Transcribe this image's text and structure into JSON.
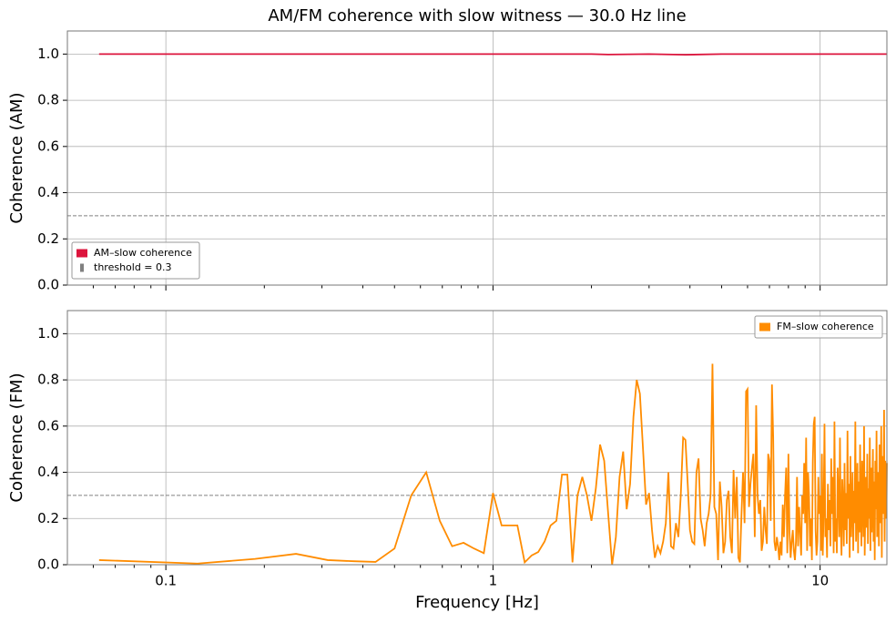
{
  "chart_data": [
    {
      "type": "line",
      "title": "AM/FM coherence with slow witness — 30.0 Hz line",
      "ylabel": "Coherence (AM)",
      "xscale": "log",
      "grid": true,
      "legend": "lower left",
      "xlim": [
        0.05,
        16
      ],
      "ylim": [
        0,
        1.1
      ],
      "yticks": [
        {
          "value": 0,
          "label": "0.0"
        },
        0.2,
        0.4,
        0.6,
        0.8,
        {
          "value": 1,
          "label": "1.0"
        }
      ],
      "threshold": {
        "value": 0.3,
        "label": "threshold = 0.3",
        "color": "#808080"
      },
      "series": [
        {
          "name": "AM–slow coherence",
          "color": "#dc143c",
          "x": [
            0.0625,
            0.5,
            1,
            2,
            2.25,
            3,
            3.875,
            5,
            8,
            16
          ],
          "values": [
            1.0,
            1.0,
            1.0,
            1.0,
            0.998,
            1.0,
            0.997,
            1.0,
            1.0,
            1.0
          ]
        }
      ]
    },
    {
      "type": "line",
      "xlabel": "Frequency [Hz]",
      "ylabel": "Coherence (FM)",
      "xscale": "log",
      "grid": true,
      "legend": "upper right",
      "xlim": [
        0.05,
        16
      ],
      "ylim": [
        0,
        1.1
      ],
      "xticks": [
        0.1,
        1,
        10
      ],
      "xminorticks": [
        0.06,
        0.07,
        0.08,
        0.09,
        0.2,
        0.3,
        0.4,
        0.5,
        0.6,
        0.7,
        0.8,
        0.9,
        2,
        3,
        4,
        5,
        6,
        7,
        8,
        9
      ],
      "yticks": [
        {
          "value": 0,
          "label": "0.0"
        },
        0.2,
        0.4,
        0.6,
        0.8,
        {
          "value": 1,
          "label": "1.0"
        }
      ],
      "threshold": 0.3,
      "series": [
        {
          "name": "FM–slow coherence",
          "color": "#ff8c00",
          "x": [
            0.0625,
            0.125,
            0.1875,
            0.25,
            0.3125,
            0.375,
            0.4375,
            0.5,
            0.5625,
            0.625,
            0.6875,
            0.75,
            0.8125,
            0.875,
            0.9375,
            1,
            1.0625,
            1.125,
            1.1875,
            1.25,
            1.3125,
            1.375,
            1.4375,
            1.5,
            1.5625,
            1.625,
            1.6875,
            1.75,
            1.8125,
            1.875,
            1.9375,
            2,
            2.0625,
            2.125,
            2.1875,
            2.25,
            2.3125,
            2.375,
            2.4375,
            2.5,
            2.5625,
            2.625,
            2.6875,
            2.75,
            2.8125,
            2.875,
            2.9375,
            3,
            3.0625,
            3.125,
            3.1875,
            3.25,
            3.3125,
            3.375,
            3.4375,
            3.5,
            3.5625,
            3.625,
            3.6875,
            3.75,
            3.8125,
            3.875,
            3.9375,
            4,
            4.0625,
            4.125,
            4.1875,
            4.25,
            4.3125,
            4.375,
            4.4375,
            4.5,
            4.5625,
            4.625,
            4.6875,
            4.75,
            4.8125,
            4.875,
            4.9375,
            5,
            5.0625,
            5.125,
            5.1875,
            5.25,
            5.3125,
            5.375,
            5.4375,
            5.5,
            5.5625,
            5.625,
            5.6875,
            5.75,
            5.8125,
            5.875,
            5.9375,
            6,
            6.0625,
            6.125,
            6.1875,
            6.25,
            6.3125,
            6.375,
            6.4375,
            6.5,
            6.5625,
            6.625,
            6.6875,
            6.75,
            6.8125,
            6.875,
            6.9375,
            7,
            7.0625,
            7.125,
            7.1875,
            7.25,
            7.3125,
            7.375,
            7.4375,
            7.5,
            7.5625,
            7.625,
            7.6875,
            7.75,
            7.8125,
            7.875,
            7.9375,
            8,
            8.0625,
            8.125,
            8.1875,
            8.25,
            8.3125,
            8.375,
            8.4375,
            8.5,
            8.5625,
            8.625,
            8.6875,
            8.75,
            8.8125,
            8.875,
            8.9375,
            9,
            9.0625,
            9.125,
            9.1875,
            9.25,
            9.3125,
            9.375,
            9.4375,
            9.5,
            9.5625,
            9.625,
            9.6875,
            9.75,
            9.8125,
            9.875,
            9.9375,
            10,
            10.0625,
            10.125,
            10.1875,
            10.25,
            10.3125,
            10.375,
            10.4375,
            10.5,
            10.5625,
            10.625,
            10.6875,
            10.75,
            10.8125,
            10.875,
            10.9375,
            11,
            11.0625,
            11.125,
            11.1875,
            11.25,
            11.3125,
            11.375,
            11.4375,
            11.5,
            11.5625,
            11.625,
            11.6875,
            11.75,
            11.8125,
            11.875,
            11.9375,
            12,
            12.0625,
            12.125,
            12.1875,
            12.25,
            12.3125,
            12.375,
            12.4375,
            12.5,
            12.5625,
            12.625,
            12.6875,
            12.75,
            12.8125,
            12.875,
            12.9375,
            13,
            13.0625,
            13.125,
            13.1875,
            13.25,
            13.3125,
            13.375,
            13.4375,
            13.5,
            13.5625,
            13.625,
            13.6875,
            13.75,
            13.8125,
            13.875,
            13.9375,
            14,
            14.0625,
            14.125,
            14.1875,
            14.25,
            14.3125,
            14.375,
            14.4375,
            14.5,
            14.5625,
            14.625,
            14.6875,
            14.75,
            14.8125,
            14.875,
            14.9375,
            15,
            15.0625,
            15.125,
            15.1875,
            15.25,
            15.3125,
            15.375,
            15.4375,
            15.5,
            15.5625,
            15.625,
            15.6875,
            15.75,
            15.8125,
            15.875,
            15.9375,
            16
          ],
          "values": [
            0.02,
            0.005,
            0.025,
            0.047,
            0.02,
            0.015,
            0.012,
            0.07,
            0.3,
            0.4,
            0.19,
            0.08,
            0.095,
            0.07,
            0.05,
            0.31,
            0.17,
            0.17,
            0.17,
            0.01,
            0.04,
            0.055,
            0.1,
            0.17,
            0.19,
            0.39,
            0.39,
            0.01,
            0.3,
            0.38,
            0.3,
            0.19,
            0.33,
            0.52,
            0.45,
            0.22,
            0.0,
            0.12,
            0.38,
            0.49,
            0.24,
            0.35,
            0.64,
            0.8,
            0.74,
            0.5,
            0.26,
            0.31,
            0.15,
            0.03,
            0.08,
            0.05,
            0.1,
            0.18,
            0.4,
            0.08,
            0.07,
            0.18,
            0.12,
            0.3,
            0.55,
            0.54,
            0.35,
            0.15,
            0.1,
            0.09,
            0.4,
            0.46,
            0.2,
            0.15,
            0.08,
            0.18,
            0.22,
            0.3,
            0.87,
            0.25,
            0.22,
            0.02,
            0.36,
            0.25,
            0.05,
            0.1,
            0.28,
            0.32,
            0.12,
            0.05,
            0.41,
            0.2,
            0.38,
            0.03,
            0.01,
            0.22,
            0.4,
            0.18,
            0.75,
            0.76,
            0.25,
            0.35,
            0.42,
            0.48,
            0.12,
            0.69,
            0.3,
            0.22,
            0.28,
            0.06,
            0.1,
            0.25,
            0.15,
            0.09,
            0.48,
            0.45,
            0.19,
            0.78,
            0.55,
            0.1,
            0.06,
            0.12,
            0.08,
            0.02,
            0.1,
            0.04,
            0.26,
            0.12,
            0.3,
            0.42,
            0.05,
            0.48,
            0.14,
            0.03,
            0.1,
            0.15,
            0.06,
            0.02,
            0.1,
            0.38,
            0.08,
            0.25,
            0.14,
            0.04,
            0.3,
            0.22,
            0.44,
            0.18,
            0.55,
            0.06,
            0.4,
            0.3,
            0.08,
            0.2,
            0.02,
            0.45,
            0.61,
            0.64,
            0.15,
            0.04,
            0.1,
            0.38,
            0.22,
            0.3,
            0.06,
            0.48,
            0.04,
            0.23,
            0.61,
            0.12,
            0.2,
            0.03,
            0.35,
            0.15,
            0.28,
            0.08,
            0.46,
            0.22,
            0.38,
            0.05,
            0.62,
            0.1,
            0.2,
            0.05,
            0.42,
            0.3,
            0.12,
            0.55,
            0.18,
            0.04,
            0.37,
            0.26,
            0.08,
            0.44,
            0.15,
            0.31,
            0.09,
            0.58,
            0.2,
            0.35,
            0.03,
            0.47,
            0.12,
            0.25,
            0.4,
            0.06,
            0.32,
            0.18,
            0.62,
            0.1,
            0.28,
            0.44,
            0.05,
            0.36,
            0.14,
            0.52,
            0.22,
            0.08,
            0.45,
            0.3,
            0.12,
            0.6,
            0.04,
            0.25,
            0.38,
            0.16,
            0.48,
            0.09,
            0.33,
            0.2,
            0.55,
            0.06,
            0.42,
            0.14,
            0.28,
            0.5,
            0.1,
            0.36,
            0.02,
            0.45,
            0.24,
            0.58,
            0.12,
            0.3,
            0.4,
            0.08,
            0.52,
            0.18,
            0.35,
            0.6,
            0.03,
            0.47,
            0.22,
            0.38,
            0.67,
            0.1,
            0.45,
            0.3,
            0.2,
            0.44
          ]
        }
      ]
    }
  ]
}
